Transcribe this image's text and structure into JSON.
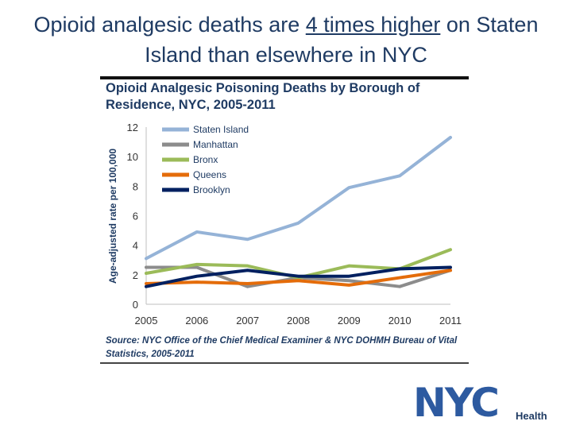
{
  "slide": {
    "title_part1": "Opioid analgesic deaths are ",
    "title_emphasis": "4 times higher",
    "title_part2": " on Staten Island than elsewhere in NYC"
  },
  "logo": {
    "letters": "NYC",
    "department": "Health"
  },
  "chart_data": {
    "type": "line",
    "title": "Opioid Analgesic Poisoning Deaths by Borough of Residence, NYC, 2005-2011",
    "xlabel": "",
    "ylabel": "Age-adjusted rate per 100,000",
    "categories": [
      "2005",
      "2006",
      "2007",
      "2008",
      "2009",
      "2010",
      "2011"
    ],
    "y_ticks": [
      "0",
      "2",
      "4",
      "6",
      "8",
      "10",
      "12"
    ],
    "ylim": [
      0,
      12
    ],
    "grid": false,
    "legend": "top-left",
    "source": "Source: NYC Office of the Chief Medical Examiner & NYC DOHMH Bureau of Vital Statistics, 2005-2011",
    "series": [
      {
        "name": "Staten Island",
        "color": "#95b3d7",
        "values": [
          3.1,
          4.9,
          4.4,
          5.5,
          7.9,
          8.7,
          11.3
        ]
      },
      {
        "name": "Manhattan",
        "color": "#8c8c8c",
        "values": [
          2.5,
          2.5,
          1.2,
          1.8,
          1.6,
          1.2,
          2.3
        ]
      },
      {
        "name": "Bronx",
        "color": "#9bbb59",
        "values": [
          2.1,
          2.7,
          2.6,
          1.8,
          2.6,
          2.4,
          3.7
        ]
      },
      {
        "name": "Queens",
        "color": "#e46c0a",
        "values": [
          1.4,
          1.5,
          1.4,
          1.6,
          1.3,
          1.8,
          2.3
        ]
      },
      {
        "name": "Brooklyn",
        "color": "#002060",
        "values": [
          1.2,
          1.9,
          2.3,
          1.9,
          1.9,
          2.4,
          2.5
        ]
      }
    ]
  }
}
